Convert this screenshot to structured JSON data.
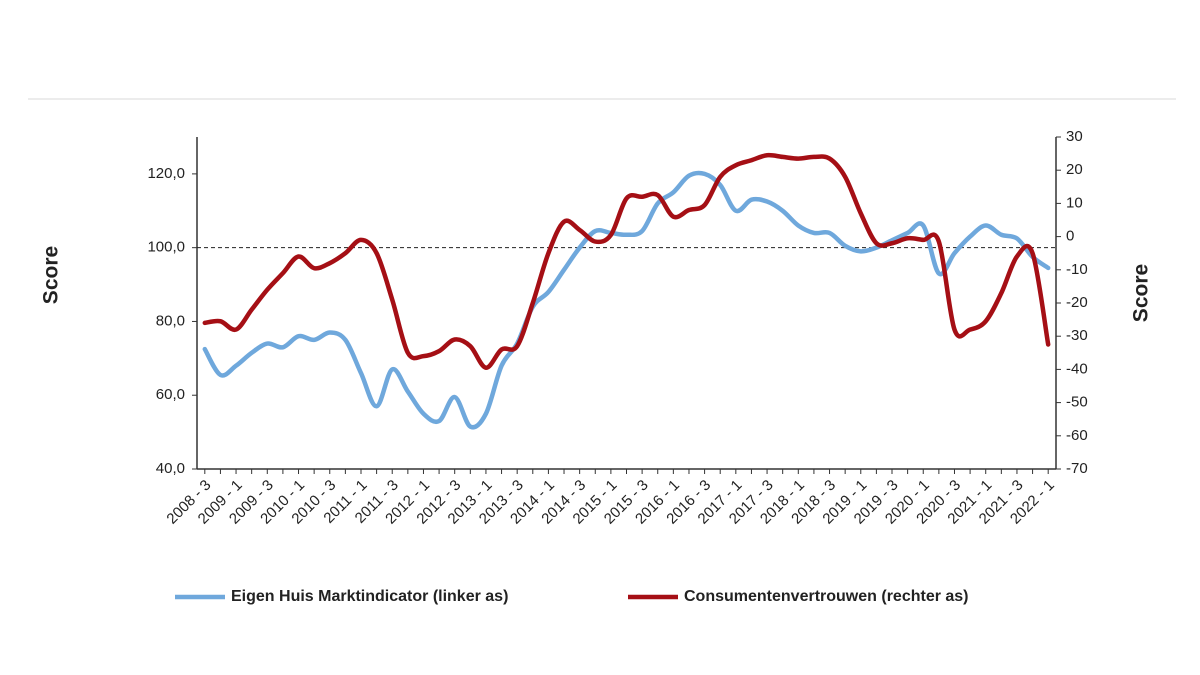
{
  "chart_data": {
    "type": "line",
    "y_label": "Score",
    "y2_label": "Score",
    "categories": [
      "2008 - 3",
      null,
      "2009 - 1",
      null,
      "2009 - 3",
      null,
      "2010 - 1",
      null,
      "2010 - 3",
      null,
      "2011 - 1",
      null,
      "2011 - 3",
      null,
      "2012 - 1",
      null,
      "2012 - 3",
      null,
      "2013 - 1",
      null,
      "2013 - 3",
      null,
      "2014 - 1",
      null,
      "2014 - 3",
      null,
      "2015 - 1",
      null,
      "2015 - 3",
      null,
      "2016 - 1",
      null,
      "2016 - 3",
      null,
      "2017 - 1",
      null,
      "2017 - 3",
      null,
      "2018 - 1",
      null,
      "2018 - 3",
      null,
      "2019 - 1",
      null,
      "2019 - 3",
      null,
      "2020 - 1",
      null,
      "2020 - 3",
      null,
      "2021 - 1",
      null,
      "2021 - 3",
      null,
      "2022 - 1"
    ],
    "series": [
      {
        "name": "Eigen Huis Marktindicator (linker as)",
        "color": "#6fa8dc",
        "axis": "y",
        "values": [
          72.5,
          65.5,
          68,
          71.5,
          74,
          73,
          76,
          75,
          77,
          75,
          66,
          57,
          67,
          61,
          55,
          53,
          59.5,
          51.5,
          55,
          68,
          74,
          84,
          88,
          94,
          100,
          104.5,
          104,
          103.5,
          104.5,
          112,
          115,
          119.5,
          120,
          117,
          110,
          113,
          112.5,
          110,
          106,
          104,
          104,
          100.5,
          99,
          100,
          102,
          104,
          106,
          93,
          98.5,
          103,
          106,
          103.5,
          102.5,
          97.5,
          94.5
        ]
      },
      {
        "name": "Consumentenvertrouwen (rechter as)",
        "color": "#a50f15",
        "axis": "y2",
        "values": [
          -26,
          -25.5,
          -28,
          -22,
          -16,
          -11,
          -6,
          -9.5,
          -8,
          -5,
          -1,
          -5,
          -19,
          -35,
          -36,
          -34.5,
          -31,
          -33,
          -39.5,
          -34,
          -33,
          -20,
          -5,
          4.5,
          2,
          -1.5,
          0.5,
          11.5,
          12,
          12.5,
          6,
          8,
          9.5,
          18,
          21.5,
          23,
          24.5,
          24,
          23.5,
          24,
          23.5,
          18,
          7,
          -2,
          -2,
          -0.5,
          -1,
          -1.5,
          -28,
          -28,
          -25.5,
          -17,
          -6,
          -5,
          -32.5
        ]
      }
    ],
    "ylim": [
      40,
      130
    ],
    "yticks": [
      {
        "value": 40,
        "label": "40,0"
      },
      {
        "value": 60,
        "label": "60,0"
      },
      {
        "value": 80,
        "label": "80,0"
      },
      {
        "value": 100,
        "label": "100,0"
      },
      {
        "value": 120,
        "label": "120,0"
      }
    ],
    "y2lim": [
      -70,
      30
    ],
    "y2ticks": [
      -70,
      -60,
      -50,
      -40,
      -30,
      -20,
      -10,
      0,
      10,
      20,
      30
    ],
    "reference_line": 100,
    "legend": "bottom"
  }
}
